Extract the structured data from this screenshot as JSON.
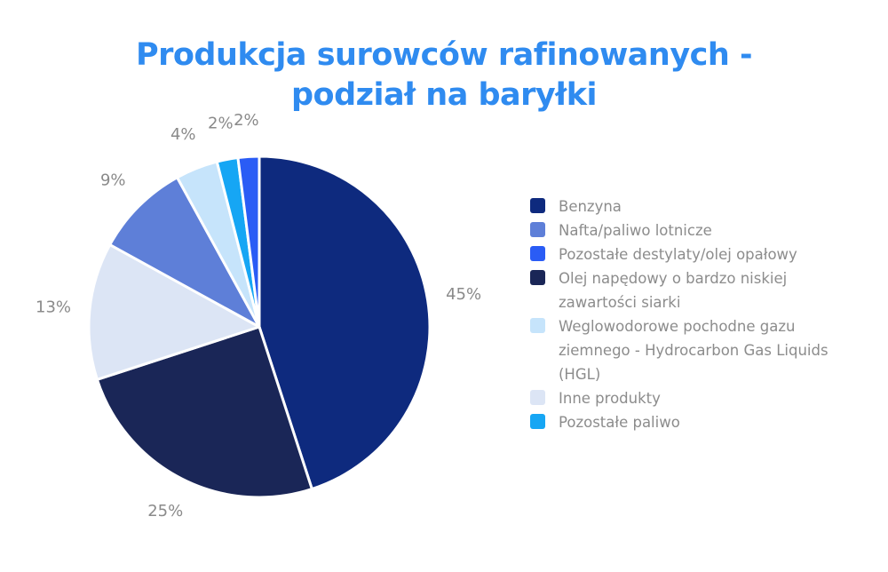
{
  "title": {
    "line1": "Produkcja surowców rafinowanych -",
    "line2": "podział na baryłki"
  },
  "chart_data": {
    "type": "pie",
    "title": "Produkcja surowców rafinowanych - podział na baryłki",
    "slices": [
      {
        "name": "Benzyna",
        "value": 45,
        "label": "45%",
        "color": "#0e2a7e"
      },
      {
        "name": "Olej napędowy o bardzo niskiej zawartości siarki",
        "value": 25,
        "label": "25%",
        "color": "#1a2657"
      },
      {
        "name": "Inne produkty",
        "value": 13,
        "label": "13%",
        "color": "#dce5f5"
      },
      {
        "name": "Nafta/paliwo lotnicze",
        "value": 9,
        "label": "9%",
        "color": "#5e7fd8"
      },
      {
        "name": "Weglowodorowe pochodne gazu ziemnego - Hydrocarbon Gas Liquids (HGL)",
        "value": 4,
        "label": "4%",
        "color": "#c6e4fb"
      },
      {
        "name": "Pozostałe paliwo",
        "value": 2,
        "label": "2%",
        "color": "#16a6f4"
      },
      {
        "name": "Pozostałe destylaty/olej opałowy",
        "value": 2,
        "label": "2%",
        "color": "#2a5cf5"
      }
    ],
    "legend_position": "right"
  },
  "legend": {
    "items": [
      {
        "label": "Benzyna",
        "color": "#0e2a7e"
      },
      {
        "label": "Nafta/paliwo lotnicze",
        "color": "#5e7fd8"
      },
      {
        "label": "Pozostałe destylaty/olej opałowy",
        "color": "#2a5cf5"
      },
      {
        "label": "Olej napędowy o bardzo niskiej zawartości siarki",
        "color": "#1a2657"
      },
      {
        "label": "Weglowodorowe pochodne gazu ziemnego - Hydrocarbon Gas Liquids (HGL)",
        "color": "#c6e4fb"
      },
      {
        "label": "Inne produkty",
        "color": "#dce5f5"
      },
      {
        "label": "Pozostałe paliwo",
        "color": "#16a6f4"
      }
    ]
  }
}
